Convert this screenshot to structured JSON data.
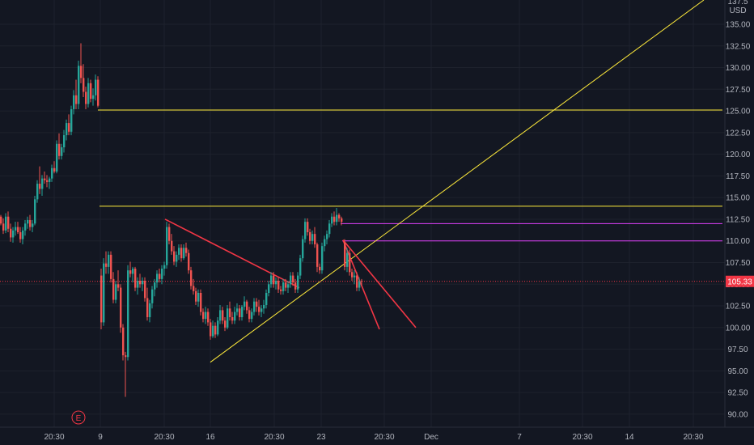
{
  "chart_data": {
    "type": "candlestick",
    "currency": "USD",
    "axis_top_partial": "137.5",
    "ylim": [
      88.5,
      137.8
    ],
    "y_ticks": [
      "135.00",
      "132.50",
      "130.00",
      "127.50",
      "125.00",
      "122.50",
      "120.00",
      "117.50",
      "115.00",
      "112.50",
      "110.00",
      "107.50",
      "105.00",
      "102.50",
      "100.00",
      "97.50",
      "95.00",
      "92.50",
      "90.00"
    ],
    "y_tick_values": [
      135,
      132.5,
      130,
      127.5,
      125,
      122.5,
      120,
      117.5,
      115,
      112.5,
      110,
      107.5,
      105,
      102.5,
      100,
      97.5,
      95,
      92.5,
      90
    ],
    "x_ticks": [
      {
        "label": "20:30",
        "t": 67
      },
      {
        "label": "9",
        "t": 124
      },
      {
        "label": "20:30",
        "t": 203
      },
      {
        "label": "16",
        "t": 260
      },
      {
        "label": "20:30",
        "t": 339
      },
      {
        "label": "23",
        "t": 397
      },
      {
        "label": "20:30",
        "t": 475
      },
      {
        "label": "Dec",
        "t": 533
      },
      {
        "label": "7",
        "t": 642
      },
      {
        "label": "20:30",
        "t": 720
      },
      {
        "label": "14",
        "t": 778
      },
      {
        "label": "20:30",
        "t": 857
      }
    ],
    "last_price": "105.33",
    "last_price_value": 105.33,
    "event_marker": "E",
    "candles": [
      [
        0,
        112.8,
        113.0,
        111.8,
        112.0
      ],
      [
        3,
        112.0,
        112.6,
        110.8,
        111.2
      ],
      [
        6,
        111.2,
        113.2,
        110.9,
        112.8
      ],
      [
        9,
        112.8,
        113.4,
        111.0,
        111.4
      ],
      [
        12,
        111.4,
        112.0,
        109.9,
        110.4
      ],
      [
        15,
        110.4,
        111.6,
        109.8,
        111.2
      ],
      [
        18,
        111.2,
        112.2,
        110.6,
        111.6
      ],
      [
        21,
        111.6,
        112.2,
        110.8,
        111.0
      ],
      [
        24,
        111.0,
        111.6,
        109.8,
        110.2
      ],
      [
        27,
        110.2,
        111.6,
        109.6,
        111.2
      ],
      [
        30,
        111.2,
        112.4,
        110.6,
        112.0
      ],
      [
        33,
        112.0,
        112.8,
        111.4,
        112.4
      ],
      [
        36,
        112.4,
        113.0,
        111.2,
        111.6
      ],
      [
        39,
        111.6,
        112.4,
        111.0,
        112.0
      ],
      [
        42,
        112.0,
        115.2,
        111.8,
        114.8
      ],
      [
        45,
        114.8,
        117.0,
        114.4,
        116.6
      ],
      [
        48,
        116.6,
        118.6,
        115.4,
        116.0
      ],
      [
        51,
        116.0,
        117.6,
        115.2,
        117.2
      ],
      [
        54,
        117.2,
        118.0,
        116.6,
        117.0
      ],
      [
        57,
        117.0,
        117.6,
        116.2,
        116.8
      ],
      [
        60,
        116.8,
        117.4,
        116.0,
        117.2
      ],
      [
        63,
        117.2,
        118.8,
        116.8,
        118.4
      ],
      [
        66,
        118.4,
        119.2,
        117.8,
        118.0
      ],
      [
        69,
        118.0,
        121.6,
        117.8,
        121.2
      ],
      [
        72,
        121.2,
        122.4,
        119.4,
        119.8
      ],
      [
        75,
        119.8,
        121.2,
        119.4,
        120.8
      ],
      [
        78,
        120.8,
        122.8,
        120.2,
        122.2
      ],
      [
        81,
        122.2,
        124.0,
        121.6,
        123.6
      ],
      [
        84,
        123.6,
        124.6,
        122.2,
        122.6
      ],
      [
        87,
        122.6,
        125.6,
        122.2,
        125.2
      ],
      [
        90,
        125.2,
        127.4,
        124.6,
        126.8
      ],
      [
        93,
        126.8,
        128.6,
        125.2,
        125.8
      ],
      [
        96,
        125.8,
        130.8,
        125.2,
        130.2
      ],
      [
        99,
        130.2,
        132.8,
        128.2,
        128.8
      ],
      [
        102,
        128.8,
        130.4,
        126.6,
        127.2
      ],
      [
        105,
        127.2,
        127.8,
        125.2,
        125.8
      ],
      [
        108,
        125.8,
        128.8,
        125.4,
        128.2
      ],
      [
        111,
        128.2,
        128.6,
        126.0,
        126.4
      ],
      [
        114,
        126.4,
        127.6,
        125.6,
        126.8
      ],
      [
        117,
        126.8,
        129.2,
        126.2,
        128.6
      ],
      [
        120,
        128.6,
        129.0,
        125.4,
        125.6
      ],
      [
        124,
        106.0,
        106.8,
        99.8,
        100.6
      ],
      [
        127,
        100.6,
        108.0,
        100.2,
        107.4
      ],
      [
        130,
        107.4,
        108.8,
        106.2,
        107.0
      ],
      [
        133,
        107.0,
        108.8,
        106.2,
        108.4
      ],
      [
        136,
        108.4,
        108.8,
        105.2,
        105.6
      ],
      [
        139,
        105.6,
        106.4,
        102.8,
        103.2
      ],
      [
        142,
        103.2,
        105.4,
        102.8,
        105.0
      ],
      [
        145,
        105.0,
        106.6,
        104.2,
        104.6
      ],
      [
        148,
        104.6,
        105.0,
        99.4,
        100.0
      ],
      [
        151,
        100.0,
        100.4,
        96.2,
        96.8
      ],
      [
        154,
        96.8,
        97.2,
        92.0,
        96.6
      ],
      [
        157,
        96.6,
        107.2,
        96.2,
        106.6
      ],
      [
        160,
        106.6,
        107.6,
        105.8,
        106.2
      ],
      [
        163,
        106.2,
        107.0,
        105.2,
        106.8
      ],
      [
        166,
        106.8,
        107.0,
        104.2,
        104.6
      ],
      [
        169,
        104.6,
        105.8,
        103.8,
        105.4
      ],
      [
        172,
        105.4,
        106.2,
        104.6,
        105.0
      ],
      [
        175,
        105.0,
        105.8,
        104.2,
        105.4
      ],
      [
        178,
        105.4,
        105.8,
        103.0,
        103.4
      ],
      [
        181,
        103.4,
        104.6,
        100.8,
        101.2
      ],
      [
        184,
        101.2,
        103.2,
        100.6,
        102.8
      ],
      [
        187,
        102.8,
        104.8,
        102.2,
        104.4
      ],
      [
        190,
        104.4,
        105.6,
        103.6,
        105.2
      ],
      [
        193,
        105.2,
        106.6,
        104.6,
        106.2
      ],
      [
        196,
        106.2,
        106.8,
        105.2,
        105.6
      ],
      [
        199,
        105.6,
        107.2,
        105.0,
        106.8
      ],
      [
        202,
        106.8,
        107.6,
        106.0,
        107.2
      ],
      [
        205,
        107.2,
        112.2,
        106.8,
        111.6
      ],
      [
        208,
        111.6,
        112.0,
        109.6,
        110.0
      ],
      [
        211,
        110.0,
        110.8,
        108.4,
        108.8
      ],
      [
        214,
        108.8,
        109.4,
        107.2,
        107.6
      ],
      [
        217,
        107.6,
        108.8,
        107.0,
        108.4
      ],
      [
        220,
        108.4,
        109.6,
        107.8,
        109.2
      ],
      [
        223,
        109.2,
        109.6,
        107.6,
        108.0
      ],
      [
        226,
        108.0,
        109.6,
        107.8,
        109.2
      ],
      [
        229,
        109.2,
        109.8,
        108.2,
        108.6
      ],
      [
        232,
        108.6,
        109.0,
        106.2,
        106.6
      ],
      [
        235,
        106.6,
        107.0,
        104.4,
        104.8
      ],
      [
        238,
        104.8,
        105.6,
        103.8,
        104.2
      ],
      [
        241,
        104.2,
        104.6,
        102.6,
        103.0
      ],
      [
        244,
        103.0,
        104.4,
        102.4,
        104.0
      ],
      [
        247,
        104.0,
        104.4,
        101.4,
        101.8
      ],
      [
        250,
        101.8,
        102.2,
        100.6,
        101.0
      ],
      [
        253,
        101.0,
        102.4,
        100.4,
        101.8
      ],
      [
        256,
        101.8,
        102.2,
        100.2,
        100.6
      ],
      [
        259,
        100.6,
        101.0,
        98.6,
        99.0
      ],
      [
        262,
        99.0,
        100.8,
        98.8,
        100.2
      ],
      [
        265,
        100.2,
        100.6,
        98.8,
        99.2
      ],
      [
        268,
        99.2,
        101.2,
        99.0,
        100.8
      ],
      [
        271,
        100.8,
        102.6,
        100.4,
        102.0
      ],
      [
        274,
        102.0,
        102.4,
        100.4,
        100.8
      ],
      [
        277,
        100.8,
        101.2,
        99.6,
        100.0
      ],
      [
        280,
        100.0,
        102.6,
        99.8,
        102.2
      ],
      [
        283,
        102.2,
        103.0,
        100.8,
        101.2
      ],
      [
        286,
        101.2,
        101.8,
        100.4,
        100.8
      ],
      [
        289,
        100.8,
        102.4,
        100.4,
        101.8
      ],
      [
        292,
        101.8,
        102.8,
        101.4,
        102.2
      ],
      [
        295,
        102.2,
        102.6,
        100.8,
        101.2
      ],
      [
        298,
        101.2,
        102.6,
        100.8,
        102.4
      ],
      [
        301,
        102.4,
        103.6,
        102.0,
        103.0
      ],
      [
        304,
        103.0,
        103.2,
        101.6,
        102.0
      ],
      [
        307,
        102.0,
        102.4,
        100.6,
        101.0
      ],
      [
        310,
        101.0,
        102.2,
        100.6,
        101.8
      ],
      [
        313,
        101.8,
        103.4,
        101.4,
        103.0
      ],
      [
        316,
        103.0,
        103.4,
        101.8,
        102.4
      ],
      [
        319,
        102.4,
        103.2,
        101.4,
        101.8
      ],
      [
        322,
        101.8,
        102.6,
        101.2,
        102.2
      ],
      [
        325,
        102.2,
        103.2,
        101.6,
        102.6
      ],
      [
        328,
        102.6,
        104.4,
        102.2,
        104.0
      ],
      [
        331,
        104.0,
        105.4,
        103.6,
        105.0
      ],
      [
        334,
        105.0,
        106.4,
        104.6,
        106.0
      ],
      [
        337,
        106.0,
        106.4,
        104.6,
        105.0
      ],
      [
        340,
        105.0,
        105.8,
        104.4,
        105.4
      ],
      [
        343,
        105.4,
        105.8,
        104.0,
        104.4
      ],
      [
        346,
        104.4,
        104.8,
        103.8,
        104.2
      ],
      [
        349,
        104.2,
        105.6,
        103.8,
        105.2
      ],
      [
        352,
        105.2,
        105.6,
        104.2,
        104.6
      ],
      [
        355,
        104.6,
        105.4,
        104.0,
        105.0
      ],
      [
        358,
        105.0,
        106.4,
        104.6,
        106.0
      ],
      [
        361,
        106.0,
        106.4,
        104.8,
        105.2
      ],
      [
        364,
        105.2,
        105.6,
        104.0,
        104.4
      ],
      [
        367,
        104.4,
        106.4,
        104.0,
        106.0
      ],
      [
        370,
        106.0,
        108.4,
        105.6,
        108.0
      ],
      [
        373,
        108.0,
        110.6,
        107.6,
        110.2
      ],
      [
        376,
        110.2,
        112.6,
        109.8,
        112.2
      ],
      [
        379,
        112.2,
        112.6,
        110.6,
        111.0
      ],
      [
        382,
        111.0,
        111.4,
        109.6,
        110.0
      ],
      [
        385,
        110.0,
        111.2,
        109.6,
        110.8
      ],
      [
        388,
        110.8,
        111.6,
        109.2,
        109.6
      ],
      [
        391,
        109.6,
        109.8,
        106.4,
        107.0
      ],
      [
        394,
        107.0,
        107.4,
        106.2,
        106.6
      ],
      [
        397,
        106.6,
        109.8,
        106.2,
        109.4
      ],
      [
        400,
        109.4,
        110.6,
        108.8,
        110.2
      ],
      [
        403,
        110.2,
        111.2,
        109.6,
        110.8
      ],
      [
        406,
        110.8,
        112.4,
        110.4,
        112.0
      ],
      [
        409,
        112.0,
        113.2,
        111.6,
        112.8
      ],
      [
        412,
        112.8,
        113.4,
        111.8,
        112.2
      ],
      [
        415,
        112.2,
        113.8,
        111.8,
        113.0
      ],
      [
        418,
        113.0,
        113.2,
        112.2,
        112.6
      ],
      [
        421,
        112.6,
        112.8,
        111.8,
        112.2
      ],
      [
        425,
        109.8,
        110.2,
        106.6,
        107.0
      ],
      [
        428,
        107.0,
        109.2,
        106.4,
        108.6
      ],
      [
        431,
        108.6,
        109.0,
        106.0,
        106.4
      ],
      [
        434,
        106.4,
        106.8,
        105.4,
        105.8
      ],
      [
        437,
        105.8,
        106.6,
        105.0,
        106.0
      ],
      [
        440,
        106.0,
        106.4,
        104.2,
        104.6
      ],
      [
        443,
        104.6,
        105.8,
        104.2,
        105.4
      ],
      [
        446,
        105.4,
        105.6,
        104.8,
        105.33
      ]
    ],
    "lines": [
      {
        "color": "#ffeb3b",
        "t1": 121,
        "p1": 125.1,
        "t2": 893,
        "p2": 125.1
      },
      {
        "color": "#ffeb3b",
        "t1": 123,
        "p1": 114.0,
        "t2": 893,
        "p2": 114.0
      },
      {
        "color": "#e040fb",
        "t1": 421,
        "p1": 112.0,
        "t2": 893,
        "p2": 112.0
      },
      {
        "color": "#e040fb",
        "t1": 423,
        "p1": 110.0,
        "t2": 893,
        "p2": 110.0
      },
      {
        "color": "#ffeb3b",
        "t1": 260,
        "p1": 96.0,
        "t2": 870,
        "p2": 137.8
      },
      {
        "color": "#f23645",
        "t1": 204,
        "p1": 112.5,
        "t2": 370,
        "p2": 104.6
      },
      {
        "color": "#f23645",
        "t1": 424,
        "p1": 110.1,
        "t2": 469,
        "p2": 99.8
      },
      {
        "color": "#f23645",
        "t1": 424,
        "p1": 110.1,
        "t2": 514,
        "p2": 100.0
      }
    ]
  }
}
